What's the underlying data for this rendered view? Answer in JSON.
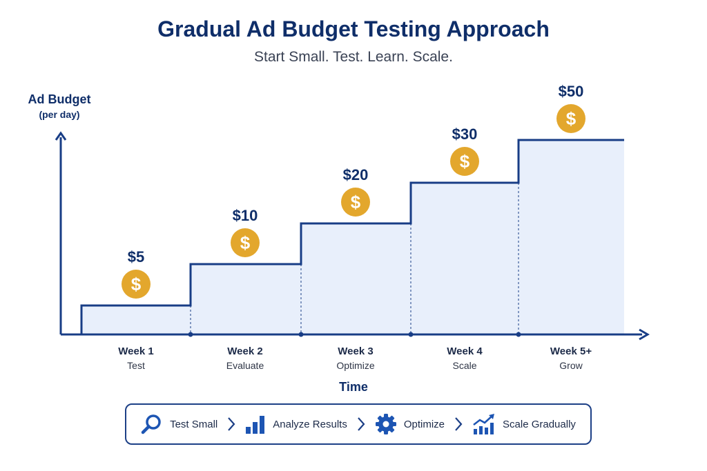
{
  "title": "Gradual Ad Budget Testing Approach",
  "subtitle": "Start Small. Test. Learn. Scale.",
  "chart_data": {
    "type": "area",
    "step": true,
    "title": "Gradual Ad Budget Testing Approach",
    "subtitle": "Start Small. Test. Learn. Scale.",
    "ylabel": "Ad Budget",
    "ylabel_unit": "(per day)",
    "xlabel": "Time",
    "categories": [
      "Week 1",
      "Week 2",
      "Week 3",
      "Week 4",
      "Week 5+"
    ],
    "sublabels": [
      "Test",
      "Evaluate",
      "Optimize",
      "Scale",
      "Grow"
    ],
    "values": [
      5,
      10,
      20,
      30,
      50
    ],
    "value_labels": [
      "$5",
      "$10",
      "$20",
      "$30",
      "$50"
    ],
    "grid": false,
    "colors": {
      "line": "#183d86",
      "fill": "#e8effb",
      "coin": "#e3a72d",
      "text": "#0f2e69"
    }
  },
  "process_steps": [
    {
      "label": "Test Small",
      "icon": "magnifier-icon"
    },
    {
      "label": "Analyze Results",
      "icon": "bar-chart-icon"
    },
    {
      "label": "Optimize",
      "icon": "gear-icon"
    },
    {
      "label": "Scale Gradually",
      "icon": "growth-chart-icon"
    }
  ]
}
